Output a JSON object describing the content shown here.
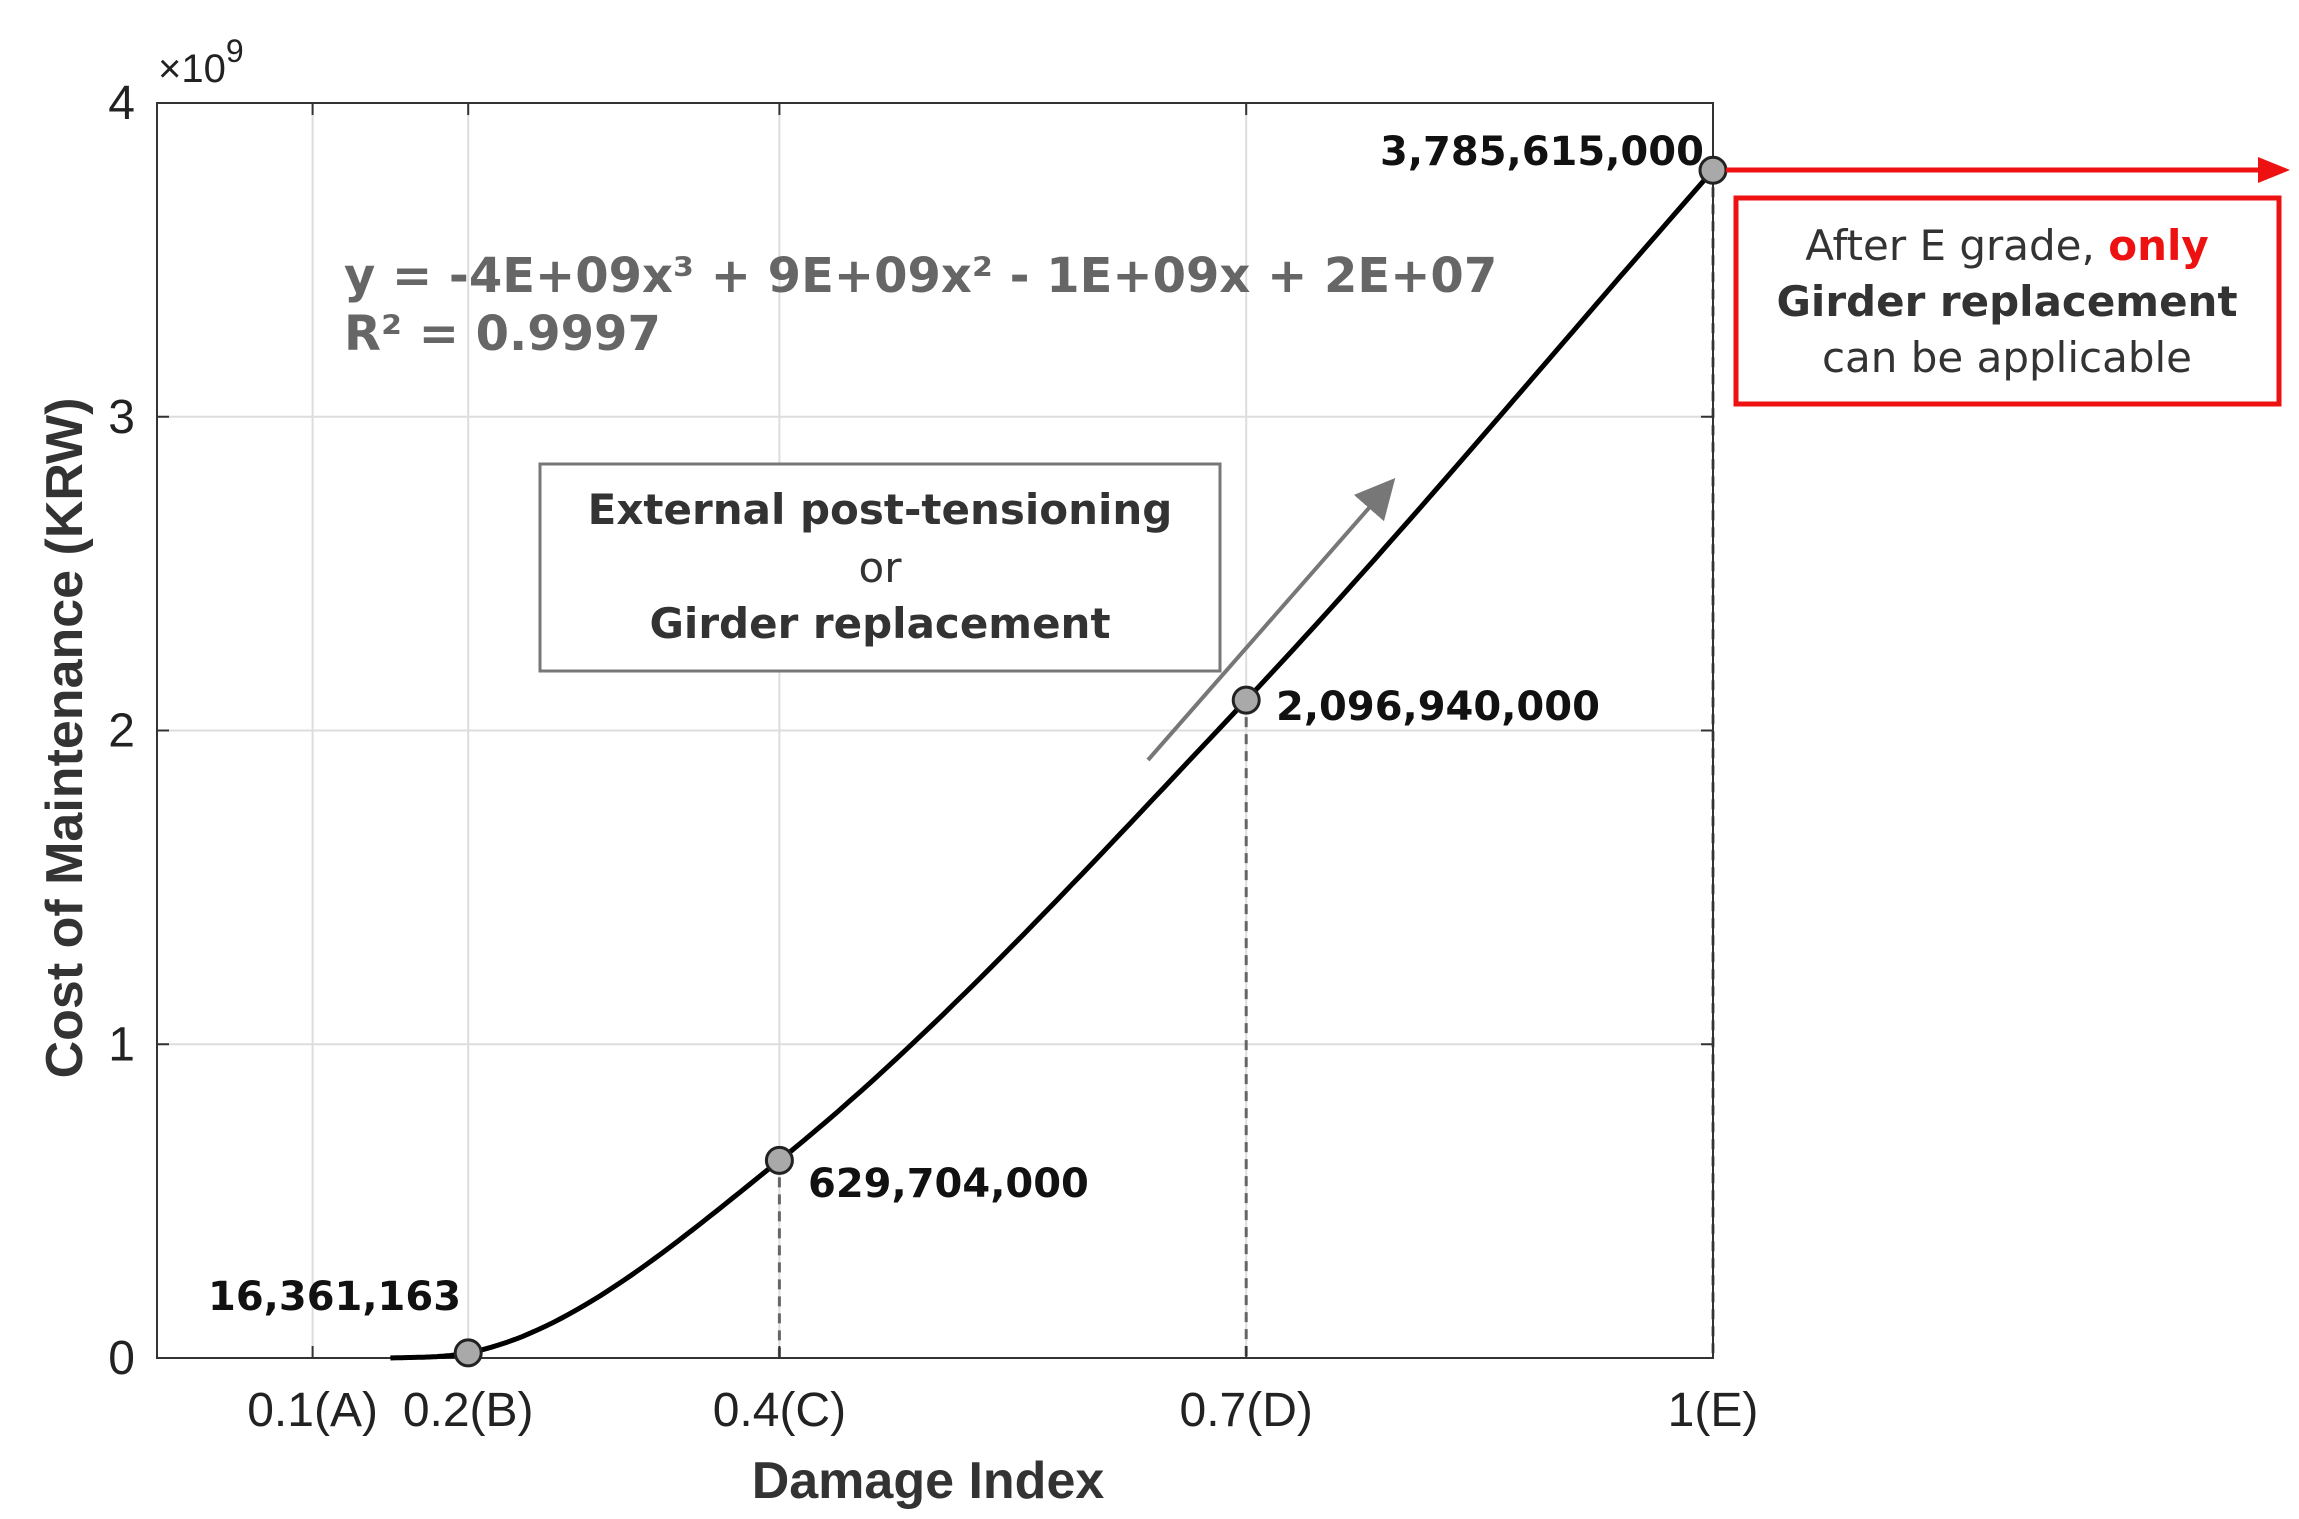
{
  "chart_data": {
    "type": "line",
    "xlabel": "Damage Index",
    "ylabel": "Cost of Maintenance (KRW)",
    "y_exponent_label": "×10",
    "y_exponent_power": "9",
    "xlim": [
      0.0,
      1.0
    ],
    "ylim": [
      0,
      4
    ],
    "x_ticks": [
      {
        "x": 0.1,
        "label": "0.1(A)"
      },
      {
        "x": 0.2,
        "label": "0.2(B)"
      },
      {
        "x": 0.4,
        "label": "0.4(C)"
      },
      {
        "x": 0.7,
        "label": "0.7(D)"
      },
      {
        "x": 1.0,
        "label": "1(E)"
      }
    ],
    "y_ticks": [
      {
        "y": 0,
        "label": "0"
      },
      {
        "y": 1,
        "label": "1"
      },
      {
        "y": 2,
        "label": "2"
      },
      {
        "y": 3,
        "label": "3"
      },
      {
        "y": 4,
        "label": "4"
      }
    ],
    "grid": true,
    "curve": {
      "x_start": 0.15,
      "x_end": 1.0
    },
    "points": [
      {
        "x": 0.2,
        "y": 0.016361163,
        "label": "16,361,163"
      },
      {
        "x": 0.4,
        "y": 0.629704,
        "label": "629,704,000"
      },
      {
        "x": 0.7,
        "y": 2.09694,
        "label": "2,096,940,000"
      },
      {
        "x": 1.0,
        "y": 3.785615,
        "label": "3,785,615,000"
      }
    ],
    "equation_line1": "y = -4E+09x³ + 9E+09x² - 1E+09x + 2E+07",
    "equation_line2": "R² = 0.9997",
    "method_box": {
      "line1": "External post-tensioning",
      "line2": "or",
      "line3": "Girder replacement"
    },
    "note_box": {
      "line1_prefix": "After E grade, ",
      "line1_highlight": "only",
      "line2": "Girder replacement",
      "line3": "can be applicable"
    },
    "colors": {
      "curve": "#000000",
      "marker_fill": "#a9a9a9",
      "grid": "#dddddd",
      "dashed": "#666666",
      "arrow": "#777777",
      "note": "#ee1111"
    }
  }
}
